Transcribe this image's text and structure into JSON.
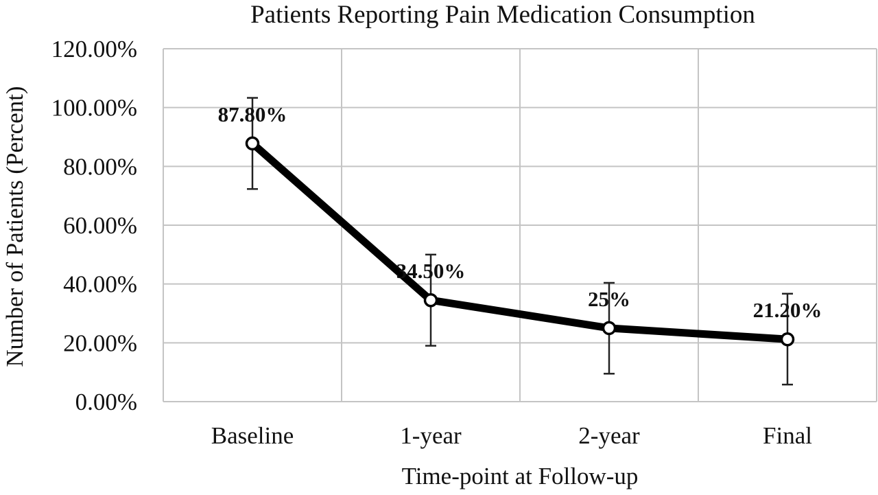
{
  "chart_data": {
    "type": "line",
    "title": "Patients Reporting Pain Medication Consumption",
    "xlabel": "Time-point at Follow-up",
    "ylabel": "Number of Patients (Percent)",
    "categories": [
      "Baseline",
      "1-year",
      "2-year",
      "Final"
    ],
    "series": [
      {
        "values": [
          87.8,
          34.5,
          25,
          21.2
        ],
        "error_low": [
          72.3,
          19,
          9.5,
          5.8
        ],
        "error_high": [
          103.3,
          50,
          40.4,
          36.7
        ],
        "data_labels": [
          "87.80%",
          "34.50%",
          "25%",
          "21.20%"
        ],
        "color": "#000000"
      }
    ],
    "ylim": [
      0,
      120
    ],
    "yticks": [
      0,
      20,
      40,
      60,
      80,
      100,
      120
    ],
    "ytick_labels": [
      "0.00%",
      "20.00%",
      "40.00%",
      "60.00%",
      "80.00%",
      "100.00%",
      "120.00%"
    ],
    "grid": true,
    "legend": "none"
  }
}
